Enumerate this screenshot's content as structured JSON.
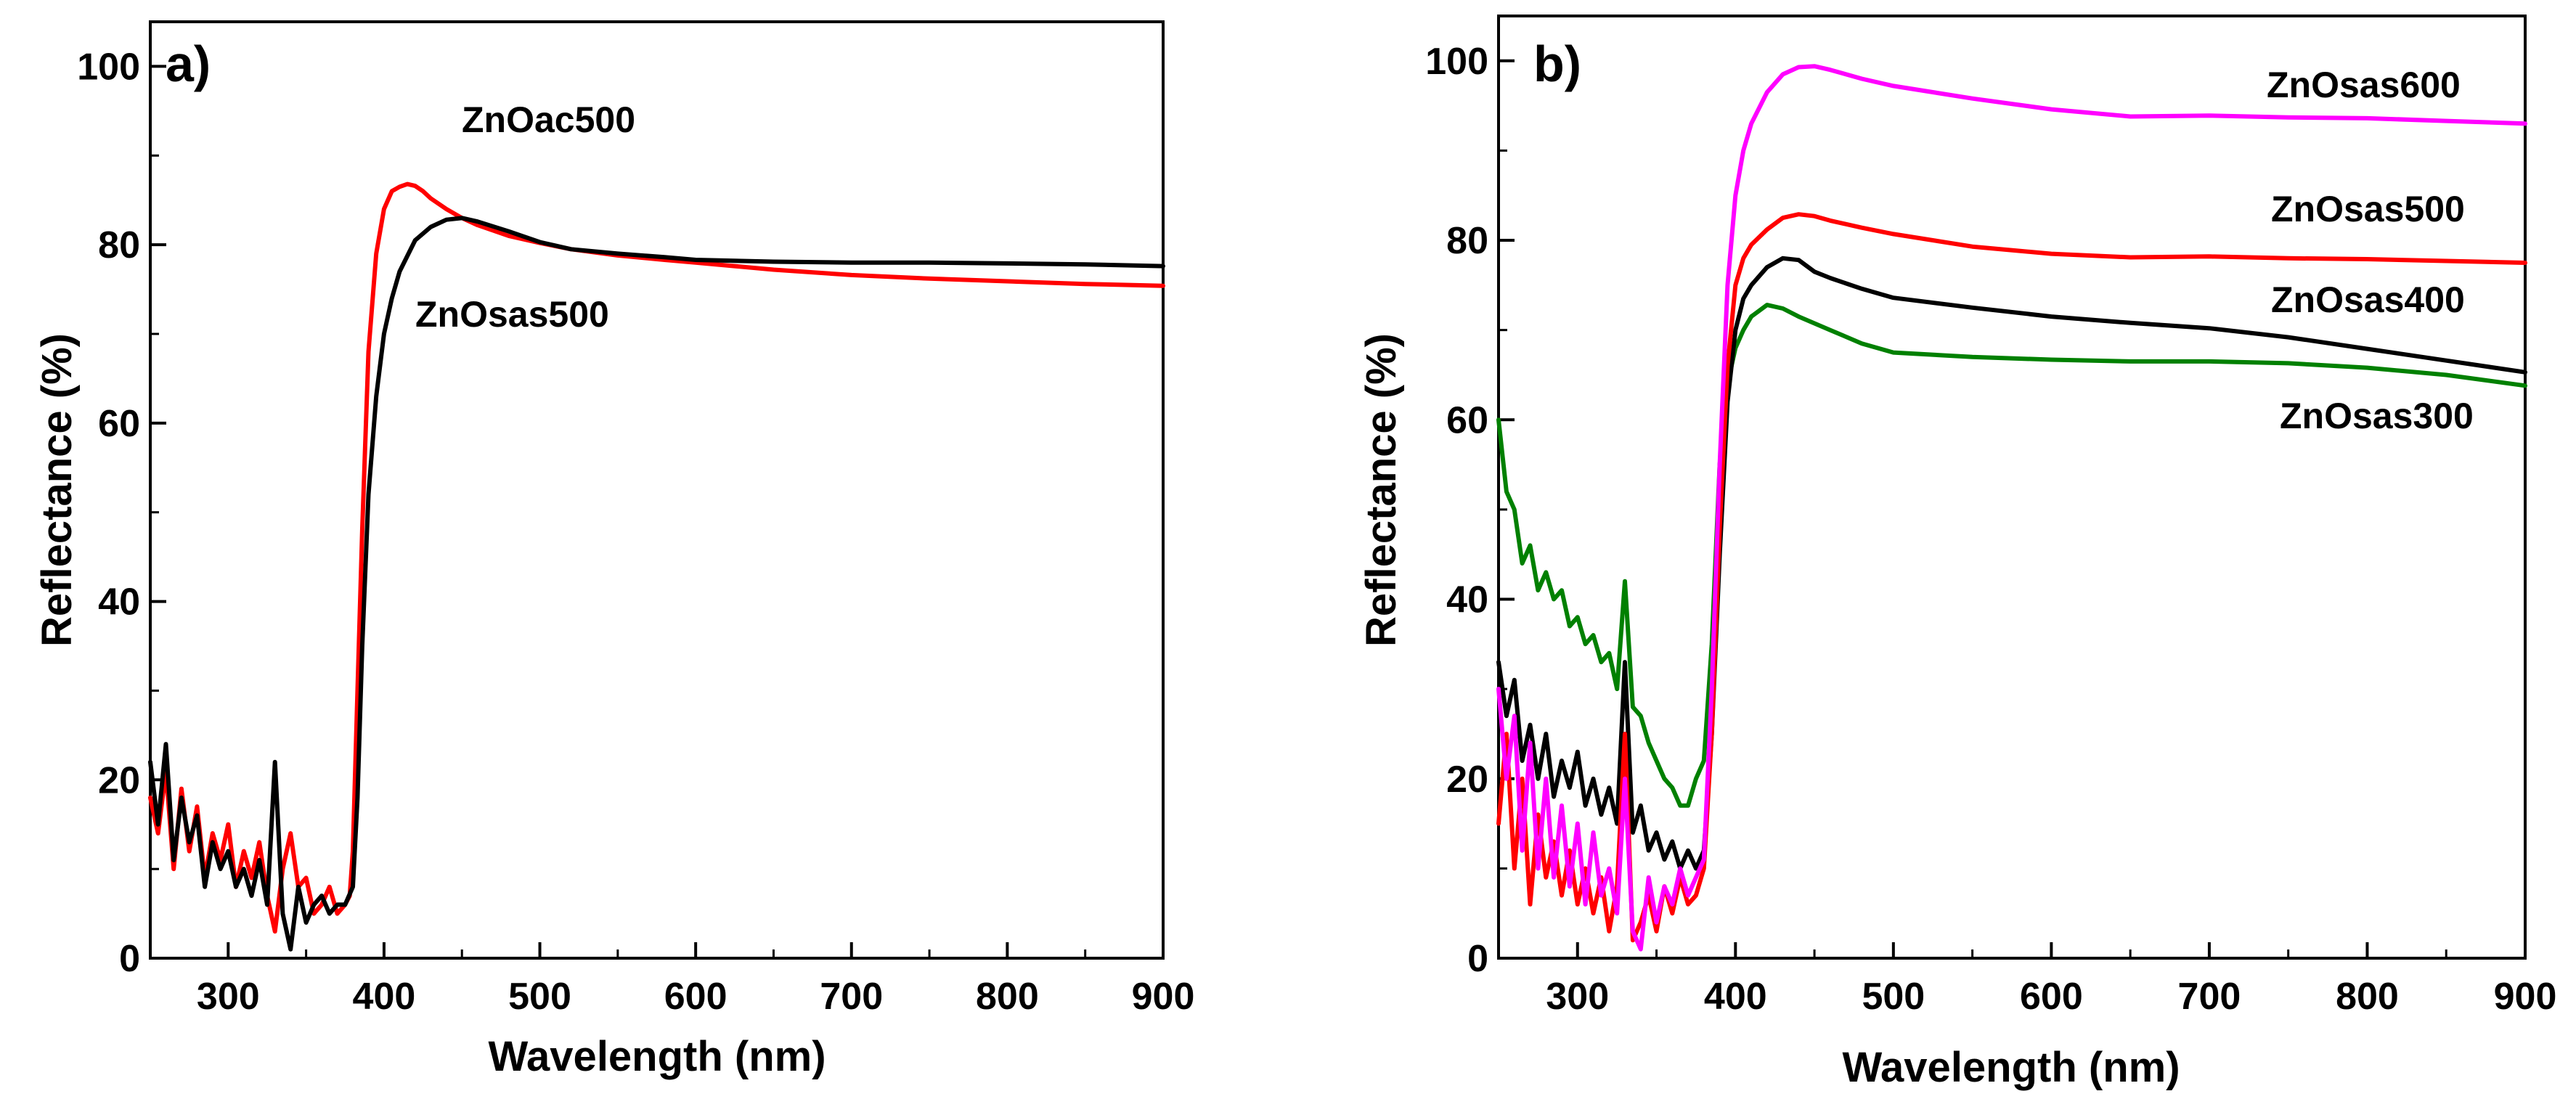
{
  "chart_data": [
    {
      "type": "line",
      "panel": "a)",
      "xlabel": "Wavelength (nm)",
      "ylabel": "Reflectance (%)",
      "xlim": [
        250,
        900
      ],
      "ylim": [
        0,
        105
      ],
      "xticks": [
        300,
        400,
        500,
        600,
        700,
        800,
        900
      ],
      "yticks": [
        0,
        20,
        40,
        60,
        80,
        100
      ],
      "series": [
        {
          "name": "ZnOac500",
          "color": "#ff0000",
          "x": [
            250,
            255,
            260,
            265,
            270,
            275,
            280,
            285,
            290,
            295,
            300,
            305,
            310,
            315,
            320,
            325,
            330,
            335,
            340,
            345,
            350,
            355,
            360,
            365,
            370,
            375,
            378,
            380,
            383,
            386,
            390,
            395,
            400,
            405,
            410,
            415,
            420,
            425,
            430,
            440,
            450,
            460,
            480,
            500,
            520,
            550,
            580,
            600,
            650,
            700,
            750,
            800,
            850,
            900
          ],
          "y": [
            18,
            14,
            21,
            10,
            19,
            12,
            17,
            9,
            14,
            11,
            15,
            8,
            12,
            9,
            13,
            7,
            3,
            10,
            14,
            8,
            9,
            5,
            6,
            8,
            5,
            6,
            7,
            12,
            30,
            48,
            68,
            79,
            84,
            86,
            86.5,
            86.8,
            86.6,
            86,
            85.2,
            84,
            83,
            82.2,
            81,
            80.2,
            79.5,
            78.8,
            78.3,
            78,
            77.2,
            76.6,
            76.2,
            75.9,
            75.6,
            75.4
          ]
        },
        {
          "name": "ZnOsas500",
          "color": "#000000",
          "x": [
            250,
            255,
            260,
            265,
            270,
            275,
            280,
            285,
            290,
            295,
            300,
            305,
            310,
            315,
            320,
            325,
            330,
            335,
            340,
            345,
            350,
            355,
            360,
            365,
            370,
            375,
            380,
            383,
            386,
            390,
            395,
            400,
            405,
            410,
            420,
            430,
            440,
            450,
            460,
            480,
            500,
            520,
            550,
            580,
            600,
            650,
            700,
            750,
            800,
            850,
            900
          ],
          "y": [
            22,
            15,
            24,
            11,
            18,
            13,
            16,
            8,
            13,
            10,
            12,
            8,
            10,
            7,
            11,
            6,
            22,
            5,
            1,
            8,
            4,
            6,
            7,
            5,
            6,
            6,
            8,
            18,
            35,
            52,
            63,
            70,
            74,
            77,
            80.5,
            82,
            82.8,
            83,
            82.6,
            81.5,
            80.3,
            79.5,
            79,
            78.6,
            78.3,
            78.1,
            78,
            78,
            77.9,
            77.8,
            77.6
          ]
        }
      ],
      "annotations": [
        "ZnOac500",
        "ZnOsas500"
      ]
    },
    {
      "type": "line",
      "panel": "b)",
      "xlabel": "Wavelength (nm)",
      "ylabel": "Reflectance (%)",
      "xlim": [
        250,
        900
      ],
      "ylim": [
        0,
        105
      ],
      "xticks": [
        300,
        400,
        500,
        600,
        700,
        800,
        900
      ],
      "yticks": [
        0,
        20,
        40,
        60,
        80,
        100
      ],
      "series": [
        {
          "name": "ZnOsas300",
          "color": "#008000",
          "x": [
            250,
            255,
            260,
            265,
            270,
            275,
            280,
            285,
            290,
            295,
            300,
            305,
            310,
            315,
            320,
            325,
            330,
            335,
            340,
            345,
            350,
            355,
            360,
            365,
            370,
            375,
            380,
            385,
            390,
            395,
            400,
            405,
            410,
            420,
            430,
            440,
            460,
            480,
            500,
            550,
            600,
            650,
            700,
            750,
            800,
            850,
            900
          ],
          "y": [
            60,
            52,
            50,
            44,
            46,
            41,
            43,
            40,
            41,
            37,
            38,
            35,
            36,
            33,
            34,
            30,
            42,
            28,
            27,
            24,
            22,
            20,
            19,
            17,
            17,
            20,
            22,
            35,
            55,
            64,
            68,
            70,
            71.5,
            72.8,
            72.4,
            71.5,
            70,
            68.5,
            67.5,
            67,
            66.7,
            66.5,
            66.5,
            66.3,
            65.8,
            65,
            63.8
          ]
        },
        {
          "name": "ZnOsas400",
          "color": "#000000",
          "x": [
            250,
            255,
            260,
            265,
            270,
            275,
            280,
            285,
            290,
            295,
            300,
            305,
            310,
            315,
            320,
            325,
            330,
            335,
            340,
            345,
            350,
            355,
            360,
            365,
            370,
            375,
            380,
            385,
            390,
            395,
            400,
            405,
            410,
            420,
            430,
            440,
            450,
            460,
            480,
            500,
            550,
            600,
            650,
            700,
            750,
            800,
            850,
            900
          ],
          "y": [
            33,
            27,
            31,
            22,
            26,
            20,
            25,
            18,
            22,
            19,
            23,
            17,
            20,
            16,
            19,
            15,
            33,
            14,
            17,
            12,
            14,
            11,
            13,
            10,
            12,
            10,
            12,
            25,
            45,
            62,
            70,
            73.5,
            75,
            77,
            78,
            77.8,
            76.5,
            75.8,
            74.6,
            73.6,
            72.5,
            71.5,
            70.8,
            70.2,
            69.2,
            67.9,
            66.6,
            65.3
          ]
        },
        {
          "name": "ZnOsas500",
          "color": "#ff0000",
          "x": [
            250,
            255,
            260,
            265,
            270,
            275,
            280,
            285,
            290,
            295,
            300,
            305,
            310,
            315,
            320,
            325,
            330,
            335,
            340,
            345,
            350,
            355,
            360,
            365,
            370,
            375,
            380,
            385,
            390,
            395,
            400,
            405,
            410,
            420,
            430,
            440,
            450,
            460,
            480,
            500,
            550,
            600,
            650,
            700,
            750,
            800,
            850,
            900
          ],
          "y": [
            15,
            25,
            10,
            20,
            6,
            16,
            9,
            13,
            7,
            12,
            6,
            10,
            5,
            9,
            3,
            8,
            25,
            2,
            4,
            7,
            3,
            8,
            5,
            9,
            6,
            7,
            10,
            25,
            48,
            66,
            75,
            78,
            79.5,
            81.2,
            82.5,
            82.9,
            82.7,
            82.2,
            81.4,
            80.7,
            79.3,
            78.5,
            78.1,
            78.2,
            78,
            77.9,
            77.7,
            77.5
          ]
        },
        {
          "name": "ZnOsas600",
          "color": "#ff00ff",
          "x": [
            250,
            255,
            260,
            265,
            270,
            275,
            280,
            285,
            290,
            295,
            300,
            305,
            310,
            315,
            320,
            325,
            330,
            335,
            340,
            345,
            350,
            355,
            360,
            365,
            370,
            375,
            380,
            385,
            390,
            395,
            400,
            405,
            410,
            420,
            430,
            440,
            450,
            460,
            480,
            500,
            550,
            600,
            650,
            700,
            750,
            800,
            850,
            900
          ],
          "y": [
            30,
            20,
            27,
            12,
            24,
            10,
            20,
            9,
            17,
            8,
            15,
            6,
            14,
            7,
            10,
            5,
            20,
            3,
            1,
            9,
            4,
            8,
            6,
            10,
            7,
            9,
            11,
            30,
            55,
            75,
            85,
            90,
            93,
            96.5,
            98.5,
            99.3,
            99.4,
            99,
            98,
            97.2,
            95.8,
            94.6,
            93.8,
            93.9,
            93.7,
            93.6,
            93.3,
            93
          ]
        }
      ],
      "annotations": [
        "ZnOsas600",
        "ZnOsas500",
        "ZnOsas400",
        "ZnOsas300"
      ]
    }
  ]
}
